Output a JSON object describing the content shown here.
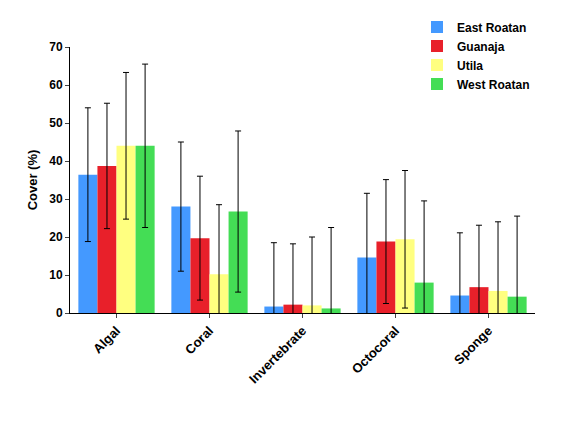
{
  "chart_data": {
    "type": "bar",
    "y_label": "Cover (%)",
    "categories": [
      "Algal",
      "Coral",
      "Invertebrate",
      "Octocoral",
      "Sponge"
    ],
    "series": [
      {
        "name": "East Roatan",
        "color": "#4499ff",
        "values": [
          36.4,
          28,
          1.7,
          14.6,
          4.6
        ],
        "errors": [
          17.6,
          17,
          16.8,
          16.9,
          16.5
        ]
      },
      {
        "name": "Guanaja",
        "color": "#e8202a",
        "values": [
          38.7,
          19.7,
          2.2,
          18.8,
          6.8
        ],
        "errors": [
          16.5,
          16.3,
          16,
          16.3,
          16.3
        ]
      },
      {
        "name": "Utila",
        "color": "#ffff80",
        "values": [
          44,
          10.2,
          2,
          19.4,
          5.8
        ],
        "errors": [
          19.3,
          18.3,
          18,
          18.1,
          18.2
        ]
      },
      {
        "name": "West Roatan",
        "color": "#44dd55",
        "values": [
          44,
          26.7,
          1.2,
          8,
          4.3
        ],
        "errors": [
          21.5,
          21.2,
          21.3,
          21.5,
          21.2
        ]
      }
    ],
    "ylim": [
      0,
      70
    ],
    "yticks": [
      0,
      10,
      20,
      30,
      40,
      50,
      60,
      70
    ],
    "grid": false,
    "legend": "top right"
  }
}
